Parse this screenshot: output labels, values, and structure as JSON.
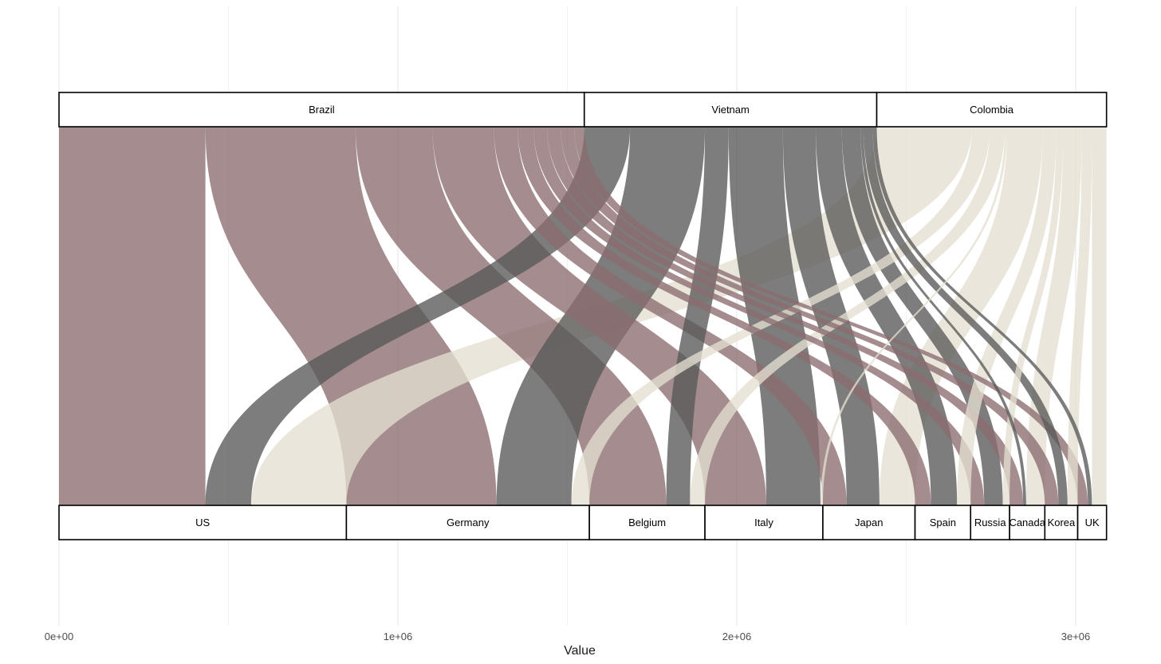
{
  "chart_data": {
    "type": "alluvial",
    "xlabel": "Value",
    "xlim": [
      0,
      3080000
    ],
    "x_ticks": [
      {
        "value": 0,
        "label": "0e+00"
      },
      {
        "value": 1000000,
        "label": "1e+06"
      },
      {
        "value": 2000000,
        "label": "2e+06"
      },
      {
        "value": 3000000,
        "label": "3e+06"
      }
    ],
    "grid": true,
    "sources": [
      "Brazil",
      "Vietnam",
      "Colombia"
    ],
    "targets": [
      "US",
      "Germany",
      "Belgium",
      "Italy",
      "Japan",
      "Spain",
      "Russia",
      "Canada",
      "Korea",
      "UK"
    ],
    "source_colors": {
      "Brazil": "#8b6b70",
      "Vietnam": "#595959",
      "Colombia": "#e4dfd1"
    },
    "flows": [
      {
        "source": "Brazil",
        "target": "US",
        "value": 432000
      },
      {
        "source": "Brazil",
        "target": "Germany",
        "value": 443000
      },
      {
        "source": "Brazil",
        "target": "Belgium",
        "value": 227000
      },
      {
        "source": "Brazil",
        "target": "Italy",
        "value": 181000
      },
      {
        "source": "Brazil",
        "target": "Japan",
        "value": 70000
      },
      {
        "source": "Brazil",
        "target": "Spain",
        "value": 47000
      },
      {
        "source": "Brazil",
        "target": "Russia",
        "value": 40000
      },
      {
        "source": "Brazil",
        "target": "Canada",
        "value": 40000
      },
      {
        "source": "Brazil",
        "target": "Korea",
        "value": 40000
      },
      {
        "source": "Brazil",
        "target": "UK",
        "value": 30000
      },
      {
        "source": "Vietnam",
        "target": "US",
        "value": 135000
      },
      {
        "source": "Vietnam",
        "target": "Germany",
        "value": 221000
      },
      {
        "source": "Vietnam",
        "target": "Belgium",
        "value": 70000
      },
      {
        "source": "Vietnam",
        "target": "Italy",
        "value": 160000
      },
      {
        "source": "Vietnam",
        "target": "Japan",
        "value": 97000
      },
      {
        "source": "Vietnam",
        "target": "Spain",
        "value": 77000
      },
      {
        "source": "Vietnam",
        "target": "Russia",
        "value": 55000
      },
      {
        "source": "Vietnam",
        "target": "Canada",
        "value": 9000
      },
      {
        "source": "Vietnam",
        "target": "Korea",
        "value": 27000
      },
      {
        "source": "Vietnam",
        "target": "UK",
        "value": 12000
      },
      {
        "source": "Colombia",
        "target": "US",
        "value": 281000
      },
      {
        "source": "Colombia",
        "target": "Germany",
        "value": 53000
      },
      {
        "source": "Colombia",
        "target": "Belgium",
        "value": 44000
      },
      {
        "source": "Colombia",
        "target": "Italy",
        "value": 7000
      },
      {
        "source": "Colombia",
        "target": "Japan",
        "value": 105000
      },
      {
        "source": "Colombia",
        "target": "Spain",
        "value": 40000
      },
      {
        "source": "Colombia",
        "target": "Russia",
        "value": 20000
      },
      {
        "source": "Colombia",
        "target": "Canada",
        "value": 55000
      },
      {
        "source": "Colombia",
        "target": "Korea",
        "value": 30000
      },
      {
        "source": "Colombia",
        "target": "UK",
        "value": 43000
      }
    ]
  }
}
